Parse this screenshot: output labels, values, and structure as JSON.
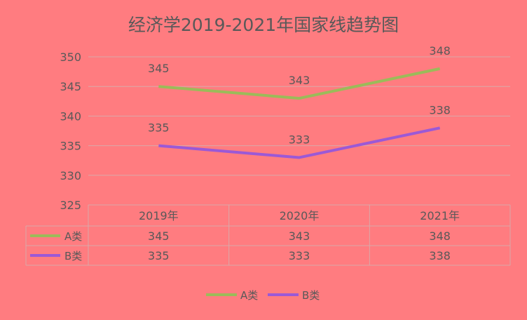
{
  "chart_data": {
    "type": "line",
    "title": "经济学2019-2021年国家线趋势图",
    "categories": [
      "2019年",
      "2020年",
      "2021年"
    ],
    "series": [
      {
        "name": "A类",
        "values": [
          345,
          343,
          348
        ],
        "color": "#9bbb59"
      },
      {
        "name": "B类",
        "values": [
          335,
          333,
          338
        ],
        "color": "#9b59d6"
      }
    ],
    "ylim": [
      325,
      350
    ],
    "yticks": [
      325,
      330,
      335,
      340,
      345,
      350
    ],
    "grid": true,
    "data_table": true,
    "legend": "bottom",
    "background": "#ff7c80",
    "text_color": "#595959"
  }
}
